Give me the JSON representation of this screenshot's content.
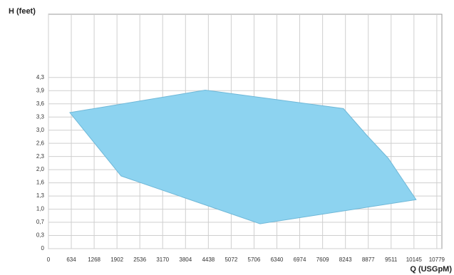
{
  "chart_data": {
    "type": "polygon",
    "y_label": "H (feet)",
    "x_label": "Q (USGpM)",
    "x": [
      593,
      4351,
      8187,
      8840,
      9433,
      10204,
      5873,
      2017
    ],
    "values": [
      3.39,
      3.95,
      3.49,
      2.82,
      2.25,
      1.22,
      0.62,
      1.81
    ],
    "color": "#8dd3f0",
    "stroke": "#6fb8d8",
    "xlim": [
      0,
      10920
    ],
    "ylim": [
      0,
      5.84
    ],
    "xticks": [
      0,
      634,
      1268,
      1902,
      2536,
      3170,
      3804,
      4438,
      5072,
      5706,
      6340,
      6974,
      7609,
      8243,
      8877,
      9511,
      10145,
      10779
    ],
    "yticks": [
      0,
      {
        "value": 0.328,
        "label": "0,3"
      },
      {
        "value": 0.656,
        "label": "0,7"
      },
      {
        "value": 0.984,
        "label": "1,0"
      },
      {
        "value": 1.312,
        "label": "1,3"
      },
      {
        "value": 1.64,
        "label": "1,6"
      },
      {
        "value": 1.968,
        "label": "2,0"
      },
      {
        "value": 2.296,
        "label": "2,3"
      },
      {
        "value": 2.624,
        "label": "2,6"
      },
      {
        "value": 2.952,
        "label": "3,0"
      },
      {
        "value": 3.28,
        "label": "3,3"
      },
      {
        "value": 3.608,
        "label": "3,6"
      },
      {
        "value": 3.936,
        "label": "3,9"
      },
      {
        "value": 4.264,
        "label": "4,3"
      }
    ],
    "grid": true
  }
}
